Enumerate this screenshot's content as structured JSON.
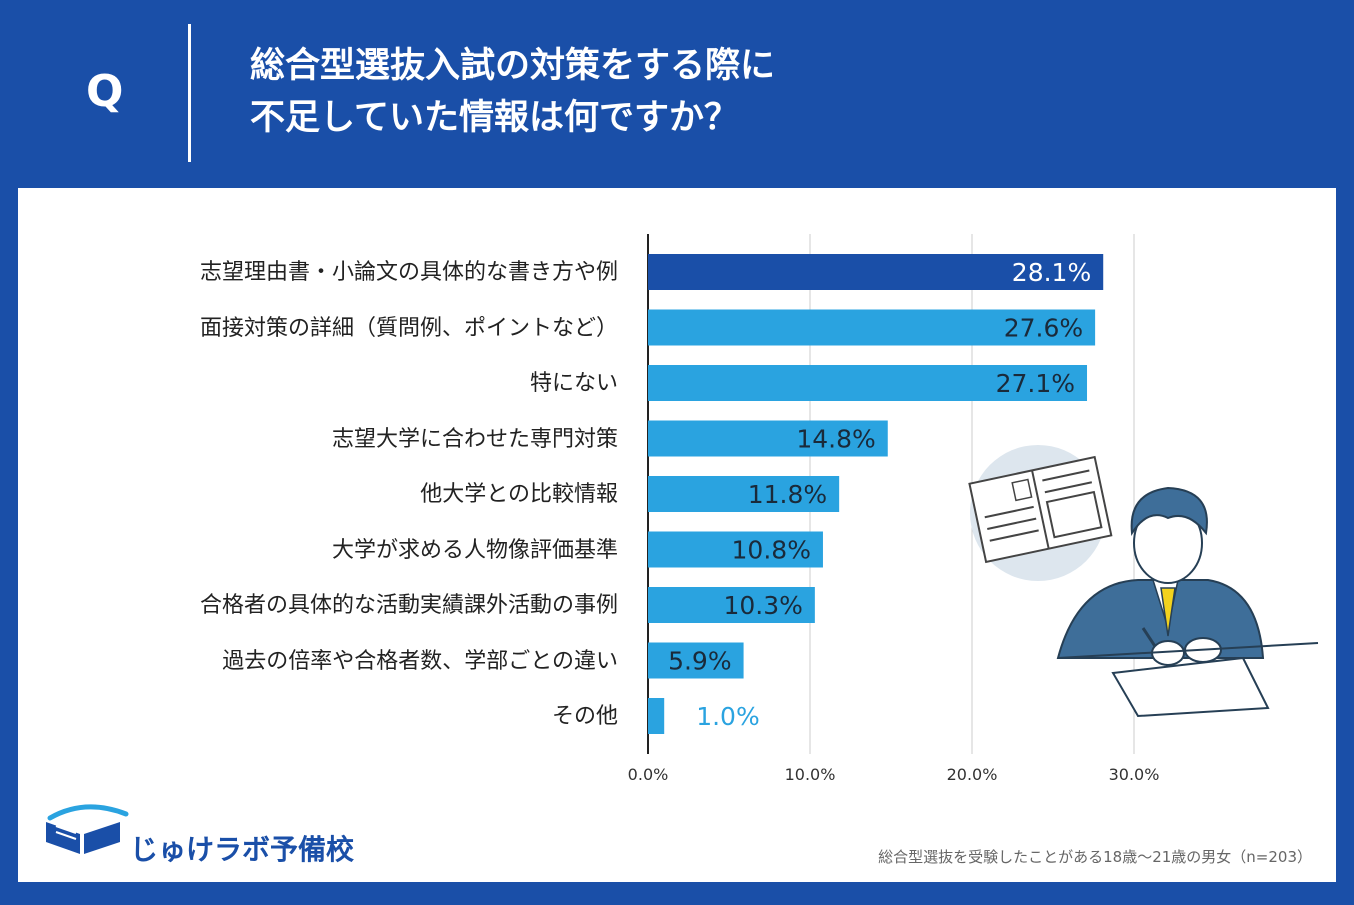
{
  "header": {
    "q_mark": "Q",
    "title_line1": "総合型選抜入試の対策をする際に",
    "title_line2": "不足していた情報は何ですか？"
  },
  "colors": {
    "background": "#1a4fa8",
    "bar_highlight": "#1a4fa8",
    "bar_default": "#2aa3e0",
    "grid": "#cccccc"
  },
  "chart_data": {
    "type": "bar",
    "orientation": "horizontal",
    "categories": [
      "志望理由書・小論文の具体的な書き方や例",
      "面接対策の詳細（質問例、ポイントなど）",
      "特にない",
      "志望大学に合わせた専門対策",
      "他大学との比較情報",
      "大学が求める人物像評価基準",
      "合格者の具体的な活動実績課外活動の事例",
      "過去の倍率や合格者数、学部ごとの違い",
      "その他"
    ],
    "values": [
      28.1,
      27.6,
      27.1,
      14.8,
      11.8,
      10.8,
      10.3,
      5.9,
      1.0
    ],
    "value_labels": [
      "28.1%",
      "27.6%",
      "27.1%",
      "14.8%",
      "11.8%",
      "10.8%",
      "10.3%",
      "5.9%",
      "1.0%"
    ],
    "highlight_index": 0,
    "xlim": [
      0,
      30
    ],
    "xticks": [
      0,
      10,
      20,
      30
    ],
    "xtick_labels": [
      "0.0%",
      "10.0%",
      "20.0%",
      "30.0%"
    ],
    "grid": true
  },
  "footer": {
    "logo_text": "じゅけラボ予備校",
    "note": "総合型選抜を受験したことがある18歳～21歳の男女（n=203）"
  }
}
